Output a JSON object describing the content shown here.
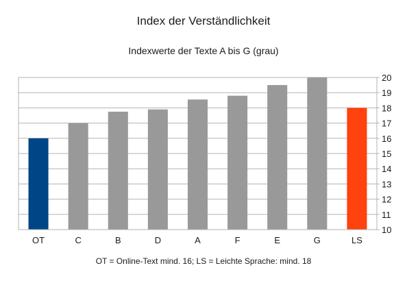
{
  "chart_data": {
    "type": "bar",
    "title": "Index der Verständlichkeit",
    "subtitle": "Indexwerte der Texte A bis G (grau)",
    "footnote": "OT = Online-Text mind. 16; LS = Leichte Sprache: mind. 18",
    "categories": [
      "OT",
      "C",
      "B",
      "D",
      "A",
      "F",
      "E",
      "G",
      "LS"
    ],
    "values": [
      16,
      17,
      17.75,
      17.9,
      18.55,
      18.8,
      19.5,
      20,
      18
    ],
    "bar_colors": [
      "#004586",
      "#999999",
      "#999999",
      "#999999",
      "#999999",
      "#999999",
      "#999999",
      "#999999",
      "#ff420e"
    ],
    "ylim": [
      10,
      20
    ],
    "yticks": [
      10,
      11,
      12,
      13,
      14,
      15,
      16,
      17,
      18,
      19,
      20
    ],
    "y_axis_side": "right",
    "grid": true,
    "gridline_color": "#b3b3b3",
    "legend": "none"
  }
}
